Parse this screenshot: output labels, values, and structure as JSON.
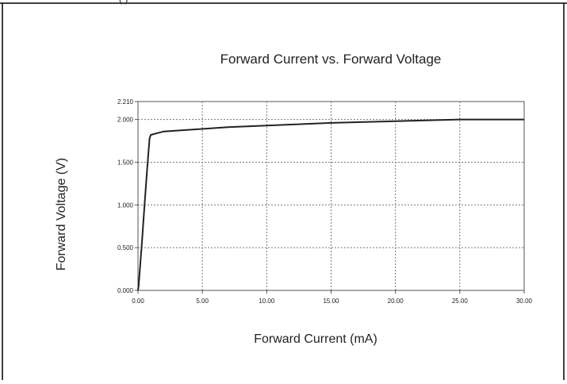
{
  "page": {
    "header_fragment": "(                )"
  },
  "chart_data": {
    "type": "line",
    "title": "Forward Current vs. Forward Voltage",
    "xlabel": "Forward Current (mA)",
    "ylabel": "Forward Voltage (V)",
    "xlim": [
      0,
      30
    ],
    "ylim": [
      0,
      2.21
    ],
    "x_ticks": [
      0,
      5,
      10,
      15,
      20,
      25,
      30
    ],
    "x_tick_labels": [
      "0.00",
      "5.00",
      "10.00",
      "15.00",
      "20.00",
      "25.00",
      "30.00"
    ],
    "y_ticks": [
      0,
      0.5,
      1.0,
      1.5,
      2.0,
      2.21
    ],
    "y_tick_labels": [
      "0.000",
      "0.500",
      "1.000",
      "1.500",
      "2.000",
      "2.210"
    ],
    "grid": true,
    "series": [
      {
        "x": [
          0,
          0.05,
          0.1,
          0.3,
          0.5,
          0.7,
          0.9,
          1.0,
          1.5,
          2.0,
          3.0,
          5.0,
          7.0,
          10.0,
          15.0,
          20.0,
          25.0,
          30.0
        ],
        "y": [
          0,
          0.05,
          0.15,
          0.55,
          0.98,
          1.4,
          1.78,
          1.82,
          1.84,
          1.86,
          1.87,
          1.89,
          1.91,
          1.93,
          1.96,
          1.98,
          2.0,
          2.0
        ],
        "color": "#222222"
      }
    ]
  }
}
